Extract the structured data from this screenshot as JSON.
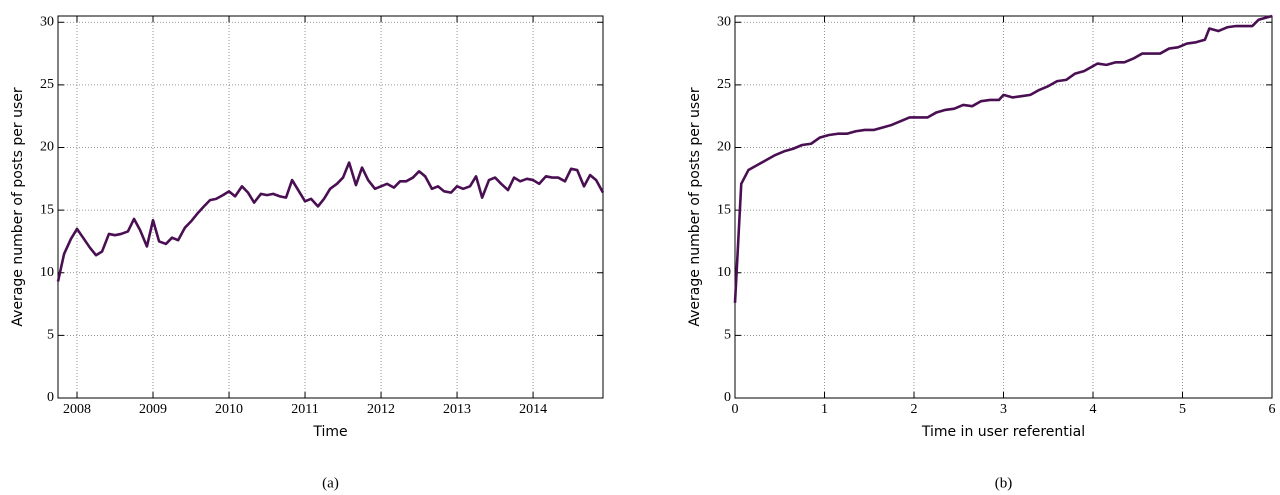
{
  "chart_data": [
    {
      "type": "line",
      "xlabel": "Time",
      "ylabel": "Average number of posts per user",
      "caption": "(a)",
      "x": [
        2007.75,
        2007.83,
        2007.92,
        2008.0,
        2008.08,
        2008.17,
        2008.25,
        2008.33,
        2008.42,
        2008.5,
        2008.58,
        2008.67,
        2008.75,
        2008.83,
        2008.92,
        2009.0,
        2009.08,
        2009.17,
        2009.25,
        2009.33,
        2009.42,
        2009.5,
        2009.58,
        2009.67,
        2009.75,
        2009.83,
        2009.92,
        2010.0,
        2010.08,
        2010.17,
        2010.25,
        2010.33,
        2010.42,
        2010.5,
        2010.58,
        2010.67,
        2010.75,
        2010.83,
        2010.92,
        2011.0,
        2011.08,
        2011.17,
        2011.25,
        2011.33,
        2011.42,
        2011.5,
        2011.58,
        2011.67,
        2011.75,
        2011.83,
        2011.92,
        2012.0,
        2012.08,
        2012.17,
        2012.25,
        2012.33,
        2012.42,
        2012.5,
        2012.58,
        2012.67,
        2012.75,
        2012.83,
        2012.92,
        2013.0,
        2013.08,
        2013.17,
        2013.25,
        2013.33,
        2013.42,
        2013.5,
        2013.58,
        2013.67,
        2013.75,
        2013.83,
        2013.92,
        2014.0,
        2014.08,
        2014.17,
        2014.25,
        2014.33,
        2014.42,
        2014.5,
        2014.58,
        2014.67,
        2014.75,
        2014.83,
        2014.92
      ],
      "values": [
        9.3,
        11.5,
        12.7,
        13.5,
        12.8,
        12.0,
        11.4,
        11.7,
        13.1,
        13.0,
        13.1,
        13.3,
        14.3,
        13.4,
        12.1,
        14.2,
        12.5,
        12.3,
        12.8,
        12.6,
        13.6,
        14.1,
        14.7,
        15.3,
        15.8,
        15.9,
        16.2,
        16.5,
        16.1,
        16.9,
        16.4,
        15.6,
        16.3,
        16.2,
        16.3,
        16.1,
        16.0,
        17.4,
        16.5,
        15.7,
        15.9,
        15.3,
        15.9,
        16.7,
        17.1,
        17.6,
        18.8,
        17.0,
        18.4,
        17.4,
        16.7,
        16.9,
        17.1,
        16.8,
        17.3,
        17.3,
        17.6,
        18.1,
        17.7,
        16.7,
        16.9,
        16.5,
        16.4,
        16.9,
        16.7,
        16.9,
        17.7,
        16.0,
        17.4,
        17.6,
        17.1,
        16.6,
        17.6,
        17.3,
        17.5,
        17.4,
        17.1,
        17.7,
        17.6,
        17.6,
        17.3,
        18.3,
        18.2,
        16.9,
        17.8,
        17.4,
        16.4
      ],
      "color": "#4a0f52",
      "grid": true,
      "xlim": [
        2007.75,
        2014.92
      ],
      "xticks": [
        2008,
        2009,
        2010,
        2011,
        2012,
        2013,
        2014
      ],
      "ylim": [
        0,
        30.5
      ],
      "yticks": [
        0,
        5,
        10,
        15,
        20,
        25,
        30
      ]
    },
    {
      "type": "line",
      "xlabel": "Time in user referential",
      "ylabel": "Average number of posts per user",
      "caption": "(b)",
      "x": [
        0,
        0.07,
        0.15,
        0.25,
        0.35,
        0.45,
        0.55,
        0.65,
        0.75,
        0.85,
        0.95,
        1.05,
        1.15,
        1.25,
        1.35,
        1.45,
        1.55,
        1.65,
        1.75,
        1.85,
        1.95,
        2.05,
        2.15,
        2.25,
        2.35,
        2.45,
        2.55,
        2.65,
        2.75,
        2.85,
        2.95,
        3.0,
        3.1,
        3.2,
        3.3,
        3.4,
        3.5,
        3.6,
        3.7,
        3.8,
        3.9,
        4.0,
        4.05,
        4.15,
        4.25,
        4.35,
        4.45,
        4.55,
        4.65,
        4.75,
        4.85,
        4.95,
        5.05,
        5.15,
        5.25,
        5.3,
        5.4,
        5.5,
        5.6,
        5.7,
        5.78,
        5.85,
        5.95,
        6.0
      ],
      "values": [
        7.6,
        17.1,
        18.2,
        18.6,
        19.0,
        19.4,
        19.7,
        19.9,
        20.2,
        20.3,
        20.8,
        21.0,
        21.1,
        21.1,
        21.3,
        21.4,
        21.4,
        21.6,
        21.8,
        22.1,
        22.4,
        22.4,
        22.4,
        22.8,
        23.0,
        23.1,
        23.4,
        23.3,
        23.7,
        23.8,
        23.8,
        24.2,
        24.0,
        24.1,
        24.2,
        24.6,
        24.9,
        25.3,
        25.4,
        25.9,
        26.1,
        26.5,
        26.7,
        26.6,
        26.8,
        26.8,
        27.1,
        27.5,
        27.5,
        27.5,
        27.9,
        28.0,
        28.3,
        28.4,
        28.6,
        29.5,
        29.3,
        29.6,
        29.7,
        29.7,
        29.7,
        30.2,
        30.4,
        30.5
      ],
      "color": "#4a0f52",
      "grid": true,
      "xlim": [
        0,
        6
      ],
      "xticks": [
        0,
        1,
        2,
        3,
        4,
        5,
        6
      ],
      "ylim": [
        0,
        30.5
      ],
      "yticks": [
        0,
        5,
        10,
        15,
        20,
        25,
        30
      ]
    }
  ]
}
